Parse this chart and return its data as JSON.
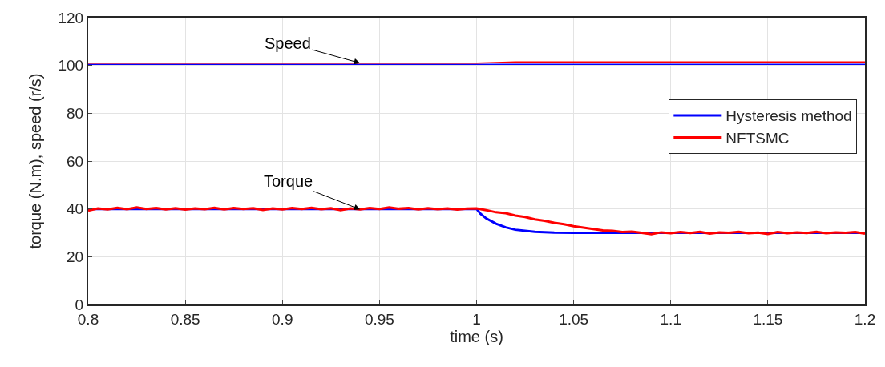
{
  "chart_data": {
    "type": "line",
    "xlabel": "time (s)",
    "ylabel": "torque (N.m), speed (r/s)",
    "xlim": [
      0.8,
      1.2
    ],
    "xticks": [
      0.8,
      0.85,
      0.9,
      0.95,
      1,
      1.05,
      1.1,
      1.15,
      1.2
    ],
    "ylim": [
      0,
      120
    ],
    "yticks": [
      0,
      20,
      40,
      60,
      80,
      100,
      120
    ],
    "grid": true,
    "legend": "right",
    "line_style": "solid",
    "marker": "none",
    "series": [
      {
        "name": "Hysteresis method",
        "color": "#0000ff",
        "x": [
          0.8,
          1.0,
          1.002,
          1.005,
          1.01,
          1.015,
          1.02,
          1.03,
          1.04,
          1.05,
          1.2
        ],
        "values": [
          40,
          40,
          38,
          36,
          33.8,
          32.3,
          31.3,
          30.4,
          30.1,
          30,
          30
        ]
      },
      {
        "name": "NFTSMC",
        "color": "#ff0000",
        "x": [
          0.8,
          0.805,
          0.81,
          0.815,
          0.82,
          0.825,
          0.83,
          0.835,
          0.84,
          0.845,
          0.85,
          0.855,
          0.86,
          0.865,
          0.87,
          0.875,
          0.88,
          0.885,
          0.89,
          0.895,
          0.9,
          0.905,
          0.91,
          0.915,
          0.92,
          0.925,
          0.93,
          0.935,
          0.94,
          0.945,
          0.95,
          0.955,
          0.96,
          0.965,
          0.97,
          0.975,
          0.98,
          0.985,
          0.99,
          0.995,
          1.0,
          1.005,
          1.01,
          1.015,
          1.02,
          1.025,
          1.03,
          1.035,
          1.04,
          1.045,
          1.05,
          1.055,
          1.06,
          1.065,
          1.07,
          1.075,
          1.08,
          1.085,
          1.09,
          1.095,
          1.1,
          1.105,
          1.11,
          1.115,
          1.12,
          1.125,
          1.13,
          1.135,
          1.14,
          1.145,
          1.15,
          1.155,
          1.16,
          1.165,
          1.17,
          1.175,
          1.18,
          1.185,
          1.19,
          1.195,
          1.2
        ],
        "values": [
          39.3,
          40.2,
          39.8,
          40.5,
          39.9,
          40.6,
          40.0,
          40.4,
          39.8,
          40.3,
          39.7,
          40.2,
          39.9,
          40.5,
          39.8,
          40.4,
          40.0,
          40.3,
          39.6,
          40.2,
          39.8,
          40.4,
          40.0,
          40.5,
          39.9,
          40.3,
          39.5,
          40.2,
          39.8,
          40.4,
          40.0,
          40.6,
          40.1,
          40.4,
          39.8,
          40.3,
          39.9,
          40.2,
          39.7,
          40.1,
          40.2,
          39.5,
          38.6,
          38.2,
          37.2,
          36.6,
          35.6,
          35.0,
          34.2,
          33.6,
          32.8,
          32.2,
          31.6,
          31.0,
          30.8,
          30.3,
          30.5,
          30.0,
          29.4,
          30.2,
          29.8,
          30.3,
          29.9,
          30.4,
          29.7,
          30.2,
          30.0,
          30.4,
          29.8,
          30.1,
          29.5,
          30.3,
          29.8,
          30.2,
          29.9,
          30.4,
          29.8,
          30.2,
          30.0,
          30.3,
          29.7
        ]
      },
      {
        "color": "#0000ff",
        "x": [
          0.8,
          1.2
        ],
        "values": [
          100.5,
          100.5
        ]
      },
      {
        "color": "#ff0000",
        "x": [
          0.8,
          1.0,
          1.02,
          1.2
        ],
        "values": [
          101,
          101,
          101.5,
          101.5
        ]
      }
    ],
    "annotations": [
      {
        "text": "Speed",
        "x": 0.94,
        "y": 101
      },
      {
        "text": "Torque",
        "x": 0.94,
        "y": 39.8
      }
    ]
  }
}
